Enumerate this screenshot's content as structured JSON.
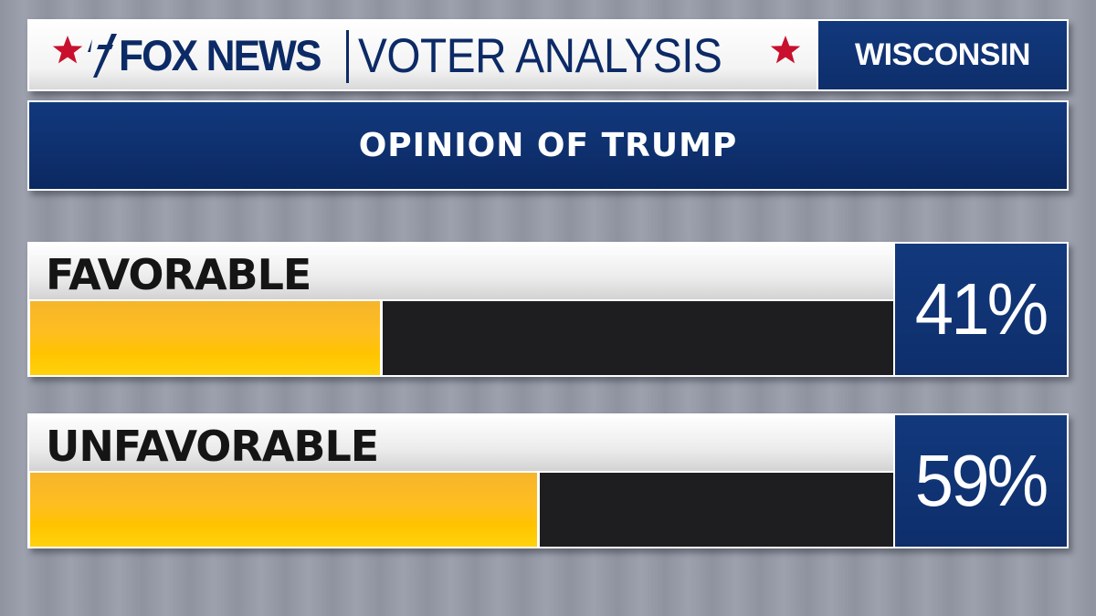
{
  "header": {
    "brand": "FOX NEWS",
    "section": "VOTER ANALYSIS",
    "state": "WISCONSIN"
  },
  "colors": {
    "navy": "#0e2e6b",
    "bar_fill": "#ffc300",
    "bar_track": "#1e1e20",
    "star": "#c8102e"
  },
  "chart_data": {
    "type": "bar",
    "orientation": "horizontal",
    "title": "OPINION OF TRUMP",
    "categories": [
      "FAVORABLE",
      "UNFAVORABLE"
    ],
    "values": [
      41,
      59
    ],
    "value_labels": [
      "41%",
      "59%"
    ],
    "unit": "%",
    "xlim": [
      0,
      100
    ]
  }
}
